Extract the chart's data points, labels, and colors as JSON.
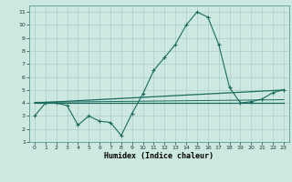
{
  "xlabel": "Humidex (Indice chaleur)",
  "bg_color": "#cce8e0",
  "line_color": "#1a6b5e",
  "grid_color": "#aacfc8",
  "xlim": [
    -0.5,
    23.5
  ],
  "ylim": [
    1,
    11.5
  ],
  "xticks": [
    0,
    1,
    2,
    3,
    4,
    5,
    6,
    7,
    8,
    9,
    10,
    11,
    12,
    13,
    14,
    15,
    16,
    17,
    18,
    19,
    20,
    21,
    22,
    23
  ],
  "yticks": [
    1,
    2,
    3,
    4,
    5,
    6,
    7,
    8,
    9,
    10,
    11
  ],
  "series1_x": [
    0,
    1,
    2,
    3,
    4,
    5,
    6,
    7,
    8,
    9,
    10,
    11,
    12,
    13,
    14,
    15,
    16,
    17,
    18,
    19,
    20,
    21,
    22,
    23
  ],
  "series1_y": [
    3.0,
    4.0,
    4.0,
    3.8,
    2.3,
    3.0,
    2.6,
    2.5,
    1.5,
    3.2,
    4.7,
    6.5,
    7.5,
    8.5,
    10.0,
    11.0,
    10.6,
    8.5,
    5.2,
    4.0,
    4.1,
    4.3,
    4.8,
    5.0
  ],
  "series2_x": [
    0,
    1,
    2,
    3,
    4,
    5,
    6,
    7,
    8,
    9,
    10,
    11,
    12,
    13,
    14,
    15,
    16,
    17,
    18,
    19,
    20,
    21,
    22,
    23
  ],
  "series2_y": [
    4.0,
    4.0,
    4.0,
    4.0,
    4.0,
    4.0,
    4.0,
    4.0,
    4.0,
    4.0,
    4.0,
    4.0,
    4.0,
    4.0,
    4.0,
    4.0,
    4.0,
    4.0,
    4.0,
    4.0,
    4.0,
    4.0,
    4.0,
    4.0
  ],
  "series3_x": [
    0,
    23
  ],
  "series3_y": [
    4.0,
    5.0
  ],
  "series4_x": [
    0,
    23
  ],
  "series4_y": [
    4.05,
    4.25
  ]
}
